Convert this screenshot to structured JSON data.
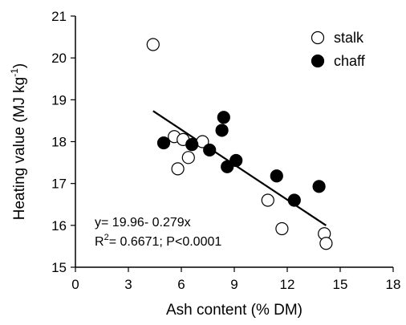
{
  "chart_data": {
    "type": "scatter",
    "xlabel": "Ash content (% DM)",
    "ylabel_parts": [
      "Heating value (MJ kg",
      "-1",
      ")"
    ],
    "xlim": [
      0,
      18
    ],
    "ylim": [
      15,
      21
    ],
    "xticks": [
      0,
      3,
      6,
      9,
      12,
      15,
      18
    ],
    "yticks": [
      15,
      16,
      17,
      18,
      19,
      20,
      21
    ],
    "grid": false,
    "legend_position": "top-right",
    "series": [
      {
        "name": "stalk",
        "marker": "open-circle",
        "x": [
          4.4,
          5.6,
          5.8,
          6.1,
          6.4,
          7.2,
          10.9,
          11.7,
          14.1,
          14.2
        ],
        "y": [
          20.32,
          18.12,
          17.35,
          18.05,
          17.62,
          18.0,
          16.6,
          15.92,
          15.8,
          15.57
        ]
      },
      {
        "name": "chaff",
        "marker": "filled-circle",
        "x": [
          5.0,
          6.6,
          7.6,
          8.3,
          8.4,
          8.6,
          9.1,
          11.4,
          12.4,
          13.8
        ],
        "y": [
          17.97,
          17.93,
          17.8,
          18.27,
          18.58,
          17.4,
          17.55,
          17.18,
          16.6,
          16.93
        ]
      }
    ],
    "regression": {
      "intercept": 19.96,
      "slope": -0.279,
      "x_range": [
        4.4,
        14.2
      ]
    },
    "annotation": {
      "line1": "y= 19.96- 0.279x",
      "line2_prefix": "R",
      "line2_sup": "2",
      "line2_suffix": "= 0.6671; P<0.0001"
    },
    "colors": {
      "marker_fill_chaff": "#000000",
      "marker_fill_stalk": "#ffffff",
      "line": "#000000"
    }
  }
}
